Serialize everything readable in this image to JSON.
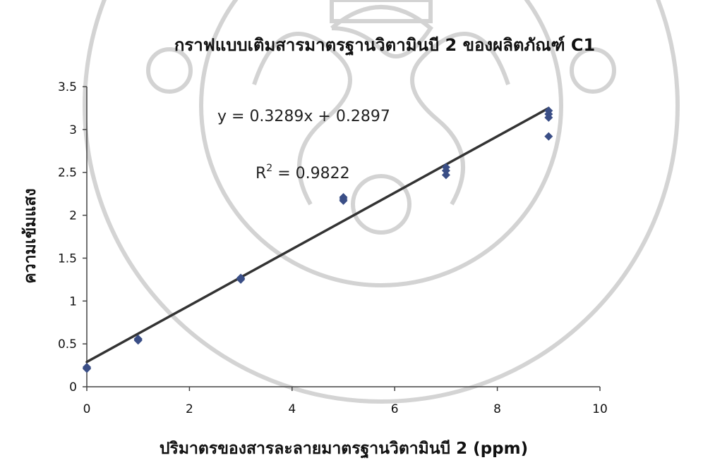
{
  "chart_data": {
    "type": "scatter",
    "title": "กราฟแบบเติมสารมาตรฐานวิตามินบี 2 ของผลิตภัณฑ์ C1",
    "xlabel": "ปริมาตรของสารละลายมาตรฐานวิตามินบี 2 (ppm)",
    "ylabel": "ความเข้มแสง",
    "xlim": [
      0,
      10
    ],
    "ylim": [
      0,
      3.5
    ],
    "x_ticks": [
      0,
      2,
      4,
      6,
      8,
      10
    ],
    "x_tick_labels": [
      "0",
      "2",
      "4",
      "6",
      "8",
      "10"
    ],
    "y_ticks": [
      0,
      0.5,
      1,
      1.5,
      2,
      2.5,
      3,
      3.5
    ],
    "y_tick_labels": [
      "0",
      "0.5",
      "1",
      "1.5",
      "2",
      "2.5",
      "3",
      "3.5"
    ],
    "grid": false,
    "legend": "none",
    "marker_color": "#3a4e86",
    "series": [
      {
        "x": [
          0,
          0,
          0,
          1,
          1,
          1,
          3,
          3,
          3,
          5,
          5,
          5,
          7,
          7,
          7,
          9,
          9,
          9,
          9
        ],
        "y": [
          0.21,
          0.22,
          0.23,
          0.54,
          0.55,
          0.56,
          1.25,
          1.26,
          1.27,
          2.17,
          2.19,
          2.21,
          2.47,
          2.52,
          2.56,
          2.92,
          3.14,
          3.18,
          3.22
        ]
      }
    ],
    "trendline": {
      "slope": 0.3289,
      "intercept": 0.2897,
      "x_range": [
        0,
        9
      ],
      "color": "#333333"
    },
    "annotations": {
      "equation": "y = 0.3289x + 0.2897",
      "r2_base": "R",
      "r2_sup": "2",
      "r2_value": " = 0.9822"
    }
  }
}
